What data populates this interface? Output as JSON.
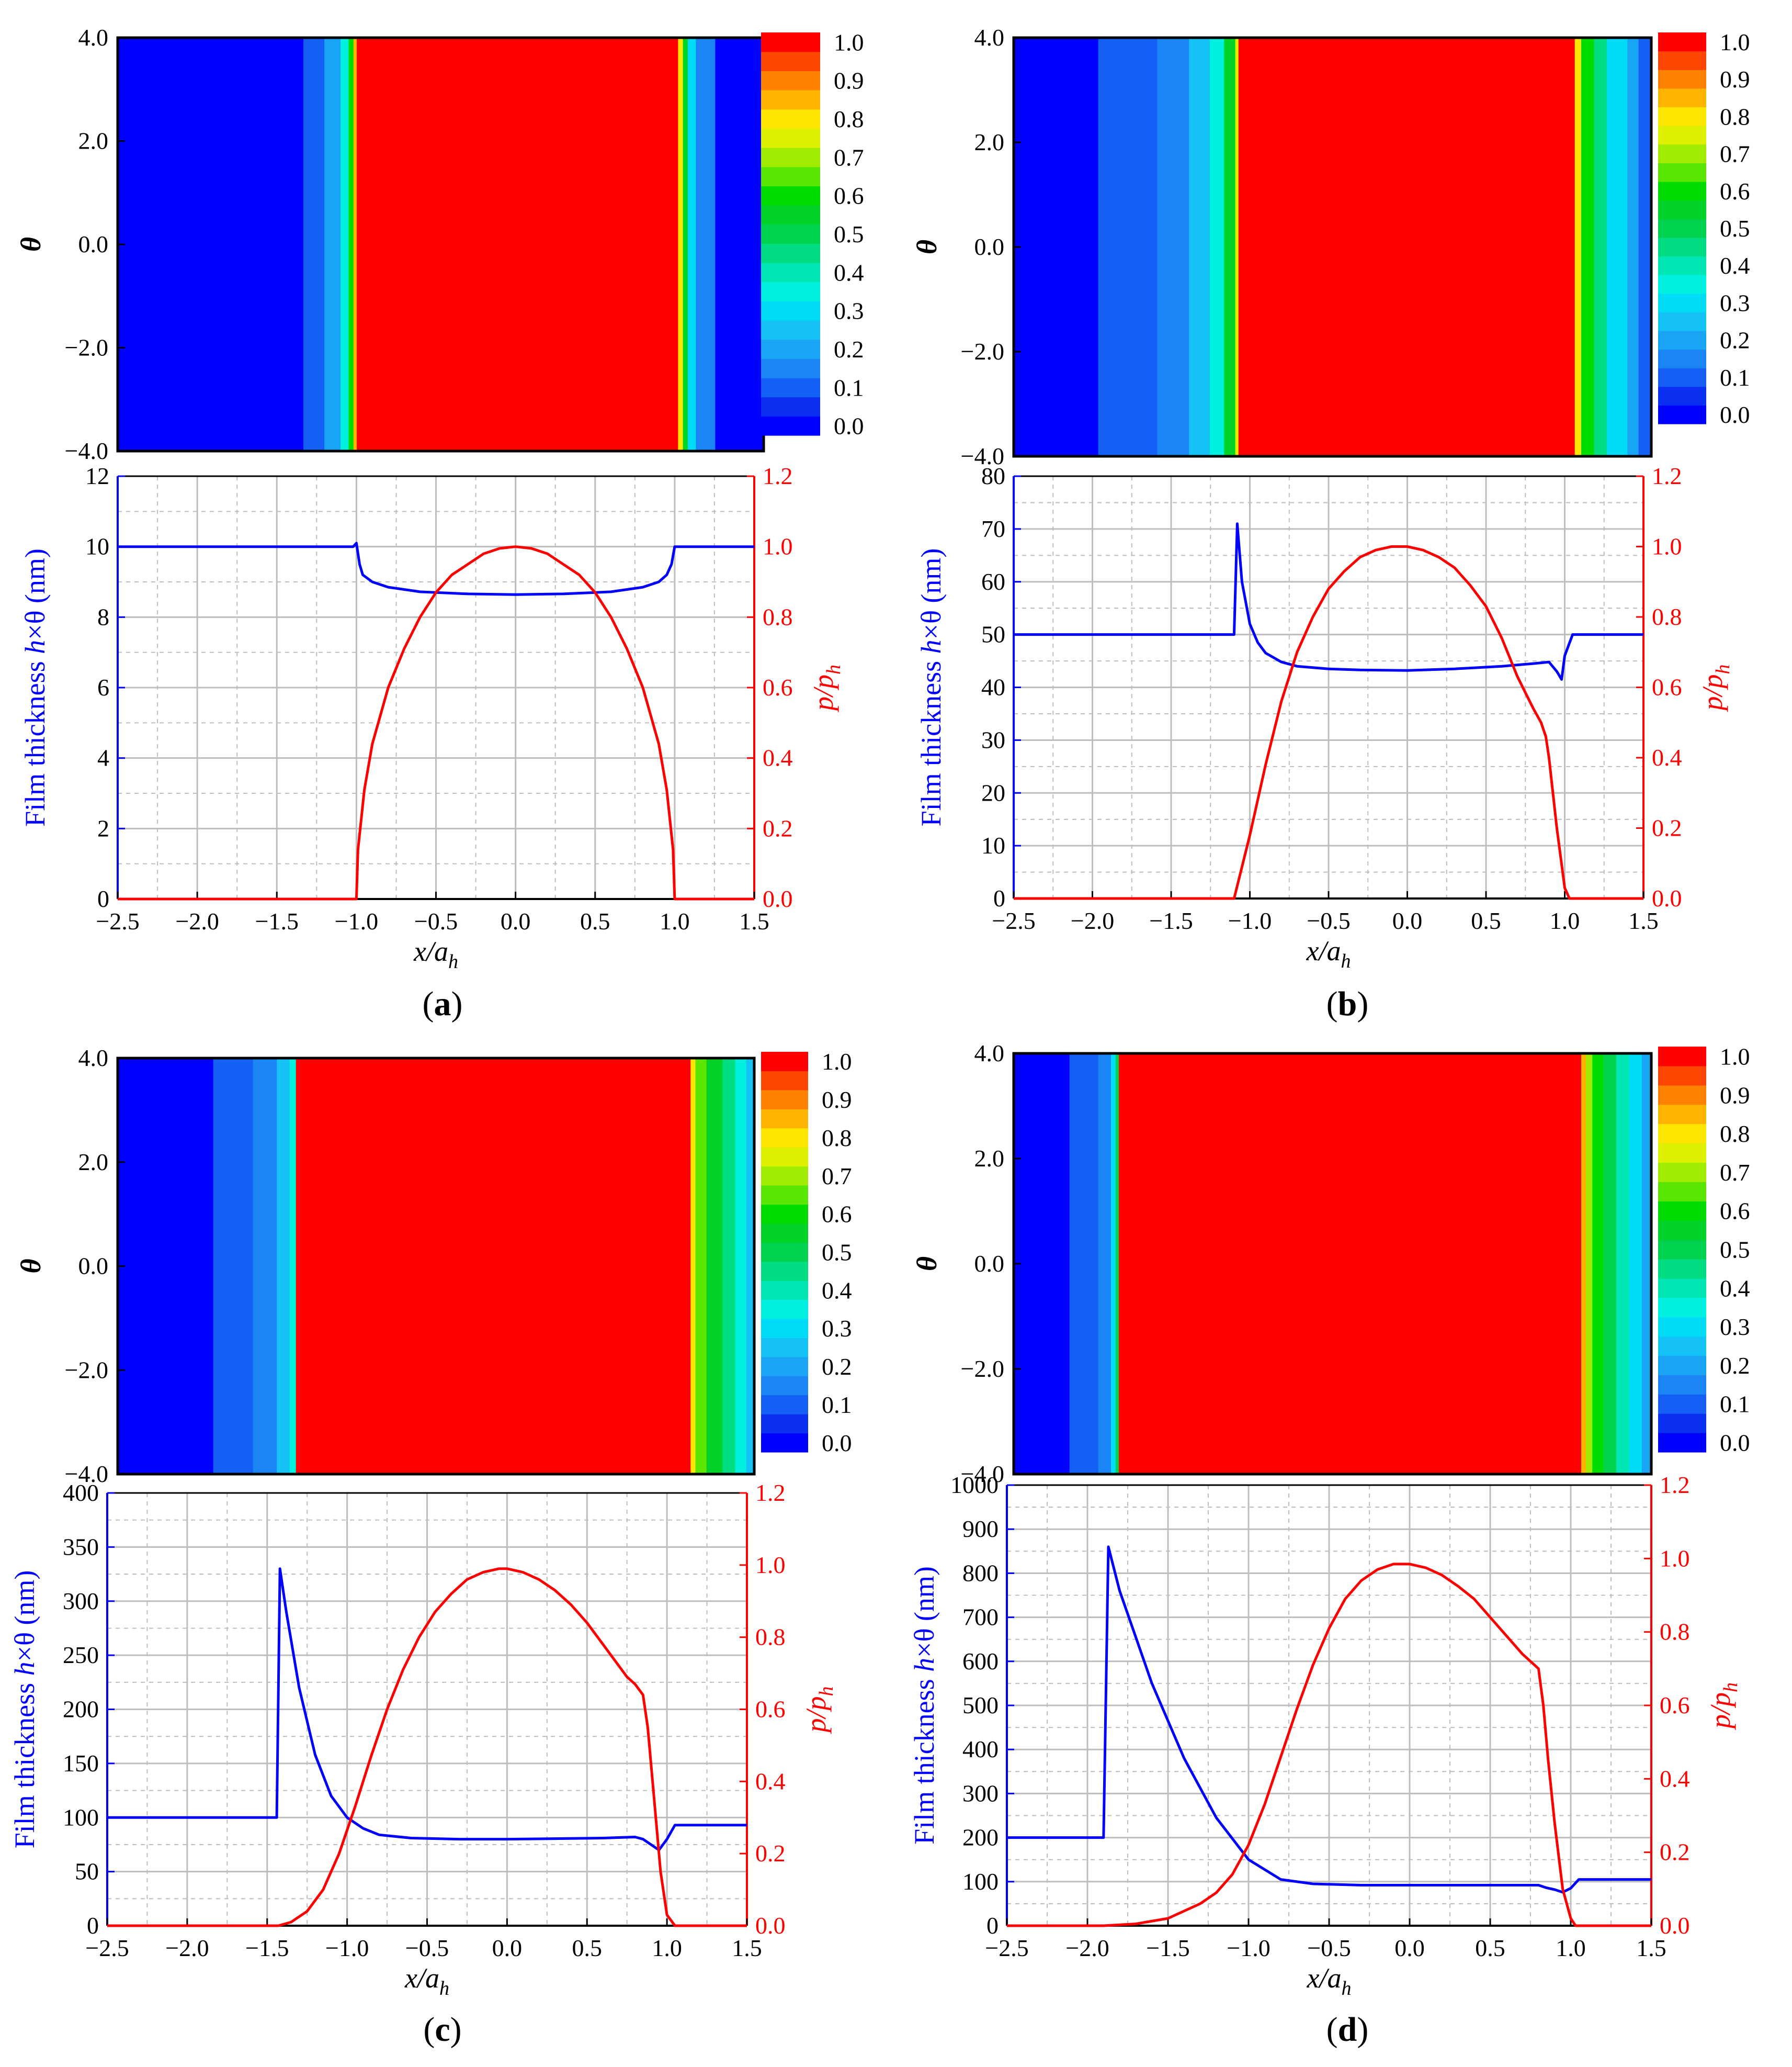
{
  "figure": {
    "panels": [
      {
        "id": "a",
        "label": "a"
      },
      {
        "id": "b",
        "label": "b"
      },
      {
        "id": "c",
        "label": "c"
      },
      {
        "id": "d",
        "label": "d"
      }
    ]
  },
  "colormap": {
    "levels": [
      0.0,
      0.05,
      0.1,
      0.15,
      0.2,
      0.25,
      0.3,
      0.35,
      0.4,
      0.45,
      0.5,
      0.55,
      0.6,
      0.65,
      0.7,
      0.75,
      0.8,
      0.85,
      0.9,
      0.95,
      1.0
    ],
    "colors": [
      "#0000ff",
      "#0a2ff0",
      "#1460f5",
      "#1c85f5",
      "#1aa4f5",
      "#14c2f5",
      "#00dcf5",
      "#00f0e0",
      "#00e6b4",
      "#00dc82",
      "#00d250",
      "#00d228",
      "#00dc00",
      "#5ae600",
      "#a0eb00",
      "#dcf000",
      "#ffe600",
      "#ffb400",
      "#ff8200",
      "#ff4600",
      "#ff0000"
    ],
    "tick_labels": [
      "0.0",
      "0.1",
      "0.2",
      "0.3",
      "0.4",
      "0.5",
      "0.6",
      "0.7",
      "0.8",
      "0.9",
      "1.0"
    ]
  },
  "colors": {
    "film_curve": "#0000ff",
    "pressure_curve": "#ff0000",
    "frame": "#000000",
    "grid": "#bdbdbd"
  },
  "chart_data": [
    {
      "panel": "a",
      "type": "heatmap",
      "title": "",
      "xlabel": "",
      "ylabel": "θ",
      "xlim": [
        -2.5,
        1.5
      ],
      "ylim": [
        -4.0,
        4.0
      ],
      "y_ticks": [
        "4.0",
        "2.0",
        "0.0",
        "−2.0",
        "−4.0"
      ],
      "colorbar_label": "",
      "column_values": [
        {
          "x_from": -2.5,
          "x_to": -1.35,
          "value": 0.0
        },
        {
          "x_from": -1.35,
          "x_to": -1.22,
          "value": 0.1
        },
        {
          "x_from": -1.22,
          "x_to": -1.12,
          "value": 0.2
        },
        {
          "x_from": -1.12,
          "x_to": -1.07,
          "value": 0.35
        },
        {
          "x_from": -1.07,
          "x_to": -1.04,
          "value": 0.6
        },
        {
          "x_from": -1.04,
          "x_to": -1.02,
          "value": 0.85
        },
        {
          "x_from": -1.02,
          "x_to": 0.97,
          "value": 1.0
        },
        {
          "x_from": 0.97,
          "x_to": 1.0,
          "value": 0.8
        },
        {
          "x_from": 1.0,
          "x_to": 1.03,
          "value": 0.55
        },
        {
          "x_from": 1.03,
          "x_to": 1.08,
          "value": 0.3
        },
        {
          "x_from": 1.08,
          "x_to": 1.2,
          "value": 0.15
        },
        {
          "x_from": 1.2,
          "x_to": 1.5,
          "value": 0.0
        }
      ]
    },
    {
      "panel": "a",
      "type": "line",
      "xlabel": "x/a_h",
      "ylabel": "Film thickness h×θ (nm)",
      "ylabel_right": "p/p_h",
      "xlim": [
        -2.5,
        1.5
      ],
      "ylim": [
        0,
        12
      ],
      "ylim_right": [
        0.0,
        1.2
      ],
      "x_ticks": [
        "−2.5",
        "−2.0",
        "−1.5",
        "−1.0",
        "−0.5",
        "0.0",
        "0.5",
        "1.0",
        "1.5"
      ],
      "y_ticks": [
        "0",
        "2",
        "4",
        "6",
        "8",
        "10",
        "12"
      ],
      "y_ticks_right": [
        "0.0",
        "0.2",
        "0.4",
        "0.6",
        "0.8",
        "1.0",
        "1.2"
      ],
      "grid": true,
      "series": [
        {
          "name": "Film thickness h×θ",
          "axis": "left",
          "x": [
            -2.5,
            -1.02,
            -1.0,
            -0.98,
            -0.96,
            -0.9,
            -0.8,
            -0.6,
            -0.3,
            0.0,
            0.3,
            0.6,
            0.8,
            0.9,
            0.95,
            0.98,
            1.0,
            1.02,
            1.5
          ],
          "y": [
            10.0,
            10.0,
            10.1,
            9.5,
            9.2,
            9.0,
            8.85,
            8.72,
            8.66,
            8.64,
            8.66,
            8.72,
            8.85,
            9.0,
            9.2,
            9.5,
            10.0,
            10.0,
            10.0
          ]
        },
        {
          "name": "p/p_h",
          "axis": "right",
          "x": [
            -2.5,
            -1.0,
            -0.99,
            -0.95,
            -0.9,
            -0.8,
            -0.7,
            -0.6,
            -0.5,
            -0.4,
            -0.3,
            -0.2,
            -0.1,
            0.0,
            0.1,
            0.2,
            0.3,
            0.4,
            0.5,
            0.6,
            0.7,
            0.8,
            0.9,
            0.95,
            0.99,
            1.0,
            1.5
          ],
          "y": [
            0.0,
            0.0,
            0.14,
            0.31,
            0.44,
            0.6,
            0.71,
            0.8,
            0.87,
            0.92,
            0.95,
            0.98,
            0.995,
            1.0,
            0.995,
            0.98,
            0.95,
            0.92,
            0.87,
            0.8,
            0.71,
            0.6,
            0.44,
            0.31,
            0.14,
            0.0,
            0.0
          ]
        }
      ]
    },
    {
      "panel": "b",
      "type": "heatmap",
      "title": "",
      "xlabel": "",
      "ylabel": "θ",
      "xlim": [
        -2.5,
        1.5
      ],
      "ylim": [
        -4.0,
        4.0
      ],
      "y_ticks": [
        "4.0",
        "2.0",
        "0.0",
        "−2.0",
        "−4.0"
      ],
      "colorbar_label": "",
      "column_values": [
        {
          "x_from": -2.5,
          "x_to": -1.97,
          "value": 0.0
        },
        {
          "x_from": -1.97,
          "x_to": -1.6,
          "value": 0.1
        },
        {
          "x_from": -1.6,
          "x_to": -1.4,
          "value": 0.15
        },
        {
          "x_from": -1.4,
          "x_to": -1.27,
          "value": 0.25
        },
        {
          "x_from": -1.27,
          "x_to": -1.18,
          "value": 0.35
        },
        {
          "x_from": -1.18,
          "x_to": -1.11,
          "value": 0.55
        },
        {
          "x_from": -1.11,
          "x_to": -1.09,
          "value": 0.75
        },
        {
          "x_from": -1.09,
          "x_to": 1.02,
          "value": 1.0
        },
        {
          "x_from": 1.02,
          "x_to": 1.06,
          "value": 0.8
        },
        {
          "x_from": 1.06,
          "x_to": 1.14,
          "value": 0.6
        },
        {
          "x_from": 1.14,
          "x_to": 1.22,
          "value": 0.45
        },
        {
          "x_from": 1.22,
          "x_to": 1.35,
          "value": 0.3
        },
        {
          "x_from": 1.35,
          "x_to": 1.42,
          "value": 0.2
        },
        {
          "x_from": 1.42,
          "x_to": 1.5,
          "value": 0.1
        }
      ]
    },
    {
      "panel": "b",
      "type": "line",
      "xlabel": "x/a_h",
      "ylabel": "Film thickness h×θ (nm)",
      "ylabel_right": "p/p_h",
      "xlim": [
        -2.5,
        1.5
      ],
      "ylim": [
        0,
        80
      ],
      "ylim_right": [
        0.0,
        1.2
      ],
      "x_ticks": [
        "−2.5",
        "−2.0",
        "−1.5",
        "−1.0",
        "−0.5",
        "0.0",
        "0.5",
        "1.0",
        "1.5"
      ],
      "y_ticks": [
        "0",
        "10",
        "20",
        "30",
        "40",
        "50",
        "60",
        "70",
        "80"
      ],
      "y_ticks_right": [
        "0.0",
        "0.2",
        "0.4",
        "0.6",
        "0.8",
        "1.0",
        "1.2"
      ],
      "grid": true,
      "series": [
        {
          "name": "Film thickness h×θ",
          "axis": "left",
          "x": [
            -2.5,
            -1.1,
            -1.08,
            -1.05,
            -1.0,
            -0.95,
            -0.9,
            -0.8,
            -0.7,
            -0.5,
            -0.3,
            0.0,
            0.3,
            0.6,
            0.8,
            0.9,
            0.95,
            0.98,
            1.0,
            1.05,
            1.5
          ],
          "y": [
            50.0,
            50.0,
            71.0,
            60.0,
            52.0,
            48.5,
            46.5,
            44.8,
            44.0,
            43.5,
            43.3,
            43.2,
            43.5,
            44.0,
            44.5,
            44.8,
            43.0,
            41.5,
            46.0,
            50.0,
            50.0
          ]
        },
        {
          "name": "p/p_h",
          "axis": "right",
          "x": [
            -2.5,
            -1.1,
            -1.0,
            -0.9,
            -0.8,
            -0.7,
            -0.6,
            -0.5,
            -0.4,
            -0.3,
            -0.2,
            -0.1,
            0.0,
            0.1,
            0.2,
            0.3,
            0.4,
            0.5,
            0.6,
            0.7,
            0.8,
            0.85,
            0.88,
            0.9,
            0.95,
            1.0,
            1.03,
            1.5
          ],
          "y": [
            0.0,
            0.0,
            0.18,
            0.38,
            0.56,
            0.7,
            0.8,
            0.88,
            0.93,
            0.97,
            0.99,
            1.0,
            1.0,
            0.99,
            0.97,
            0.94,
            0.89,
            0.83,
            0.74,
            0.63,
            0.54,
            0.5,
            0.46,
            0.4,
            0.2,
            0.03,
            0.0,
            0.0
          ]
        }
      ]
    },
    {
      "panel": "c",
      "type": "heatmap",
      "title": "",
      "xlabel": "",
      "ylabel": "θ",
      "xlim": [
        -2.5,
        1.5
      ],
      "ylim": [
        -4.0,
        4.0
      ],
      "y_ticks": [
        "4.0",
        "2.0",
        "0.0",
        "−2.0",
        "−4.0"
      ],
      "colorbar_label": "",
      "column_values": [
        {
          "x_from": -2.5,
          "x_to": -1.9,
          "value": 0.0
        },
        {
          "x_from": -1.9,
          "x_to": -1.65,
          "value": 0.1
        },
        {
          "x_from": -1.65,
          "x_to": -1.5,
          "value": 0.15
        },
        {
          "x_from": -1.5,
          "x_to": -1.42,
          "value": 0.25
        },
        {
          "x_from": -1.42,
          "x_to": -1.38,
          "value": 0.35
        },
        {
          "x_from": -1.38,
          "x_to": 1.1,
          "value": 1.0
        },
        {
          "x_from": 1.1,
          "x_to": 1.13,
          "value": 0.8
        },
        {
          "x_from": 1.13,
          "x_to": 1.2,
          "value": 0.65
        },
        {
          "x_from": 1.2,
          "x_to": 1.3,
          "value": 0.55
        },
        {
          "x_from": 1.3,
          "x_to": 1.38,
          "value": 0.45
        },
        {
          "x_from": 1.38,
          "x_to": 1.45,
          "value": 0.35
        },
        {
          "x_from": 1.45,
          "x_to": 1.5,
          "value": 0.25
        }
      ]
    },
    {
      "panel": "c",
      "type": "line",
      "xlabel": "x/a_h",
      "ylabel": "Film thickness h×θ (nm)",
      "ylabel_right": "p/p_h",
      "xlim": [
        -2.5,
        1.5
      ],
      "ylim": [
        0,
        400
      ],
      "ylim_right": [
        0.0,
        1.2
      ],
      "x_ticks": [
        "−2.5",
        "−2.0",
        "−1.5",
        "−1.0",
        "−0.5",
        "0.0",
        "0.5",
        "1.0",
        "1.5"
      ],
      "y_ticks": [
        "0",
        "50",
        "100",
        "150",
        "200",
        "250",
        "300",
        "350",
        "400"
      ],
      "y_ticks_right": [
        "0.0",
        "0.2",
        "0.4",
        "0.6",
        "0.8",
        "1.0",
        "1.2"
      ],
      "grid": true,
      "series": [
        {
          "name": "Film thickness h×θ",
          "axis": "left",
          "x": [
            -2.5,
            -1.44,
            -1.42,
            -1.38,
            -1.3,
            -1.2,
            -1.1,
            -1.0,
            -0.9,
            -0.8,
            -0.6,
            -0.3,
            0.0,
            0.3,
            0.6,
            0.8,
            0.85,
            0.9,
            0.95,
            1.0,
            1.05,
            1.5
          ],
          "y": [
            100.0,
            100.0,
            330.0,
            290.0,
            220.0,
            158.0,
            120.0,
            100.0,
            90.0,
            84.0,
            81.0,
            80.0,
            80.0,
            80.5,
            81.0,
            82.0,
            80.0,
            75.0,
            70.0,
            80.0,
            93.0,
            93.0
          ]
        },
        {
          "name": "p/p_h",
          "axis": "right",
          "x": [
            -2.5,
            -1.43,
            -1.35,
            -1.25,
            -1.15,
            -1.05,
            -0.95,
            -0.85,
            -0.75,
            -0.65,
            -0.55,
            -0.45,
            -0.35,
            -0.25,
            -0.15,
            -0.05,
            0.0,
            0.1,
            0.2,
            0.3,
            0.4,
            0.5,
            0.6,
            0.7,
            0.75,
            0.8,
            0.85,
            0.88,
            0.92,
            0.96,
            1.0,
            1.05,
            1.5
          ],
          "y": [
            0.0,
            0.0,
            0.01,
            0.04,
            0.1,
            0.2,
            0.33,
            0.47,
            0.6,
            0.71,
            0.8,
            0.87,
            0.92,
            0.96,
            0.98,
            0.99,
            0.99,
            0.98,
            0.96,
            0.93,
            0.89,
            0.84,
            0.78,
            0.72,
            0.69,
            0.67,
            0.64,
            0.55,
            0.35,
            0.15,
            0.03,
            0.0,
            0.0
          ]
        }
      ]
    },
    {
      "panel": "d",
      "type": "heatmap",
      "title": "",
      "xlabel": "",
      "ylabel": "θ",
      "xlim": [
        -2.5,
        1.5
      ],
      "ylim": [
        -4.0,
        4.0
      ],
      "y_ticks": [
        "4.0",
        "2.0",
        "0.0",
        "−2.0",
        "−4.0"
      ],
      "colorbar_label": "",
      "column_values": [
        {
          "x_from": -2.5,
          "x_to": -2.15,
          "value": 0.0
        },
        {
          "x_from": -2.15,
          "x_to": -1.97,
          "value": 0.1
        },
        {
          "x_from": -1.97,
          "x_to": -1.89,
          "value": 0.15
        },
        {
          "x_from": -1.89,
          "x_to": -1.86,
          "value": 0.3
        },
        {
          "x_from": -1.86,
          "x_to": -1.84,
          "value": 0.5
        },
        {
          "x_from": -1.84,
          "x_to": 1.06,
          "value": 1.0
        },
        {
          "x_from": 1.06,
          "x_to": 1.09,
          "value": 0.85
        },
        {
          "x_from": 1.09,
          "x_to": 1.13,
          "value": 0.7
        },
        {
          "x_from": 1.13,
          "x_to": 1.2,
          "value": 0.6
        },
        {
          "x_from": 1.2,
          "x_to": 1.28,
          "value": 0.5
        },
        {
          "x_from": 1.28,
          "x_to": 1.36,
          "value": 0.4
        },
        {
          "x_from": 1.36,
          "x_to": 1.44,
          "value": 0.3
        },
        {
          "x_from": 1.44,
          "x_to": 1.5,
          "value": 0.2
        }
      ]
    },
    {
      "panel": "d",
      "type": "line",
      "xlabel": "x/a_h",
      "ylabel": "Film thickness h×θ (nm)",
      "ylabel_right": "p/p_h",
      "xlim": [
        -2.5,
        1.5
      ],
      "ylim": [
        0,
        1000
      ],
      "ylim_right": [
        0.0,
        1.2
      ],
      "x_ticks": [
        "−2.5",
        "−2.0",
        "−1.5",
        "−1.0",
        "−0.5",
        "0.0",
        "0.5",
        "1.0",
        "1.5"
      ],
      "y_ticks": [
        "0",
        "100",
        "200",
        "300",
        "400",
        "500",
        "600",
        "700",
        "800",
        "900",
        "1000"
      ],
      "y_ticks_right": [
        "0.0",
        "0.2",
        "0.4",
        "0.6",
        "0.8",
        "1.0",
        "1.2"
      ],
      "grid": true,
      "series": [
        {
          "name": "Film thickness h×θ",
          "axis": "left",
          "x": [
            -2.5,
            -1.9,
            -1.87,
            -1.8,
            -1.6,
            -1.4,
            -1.2,
            -1.0,
            -0.8,
            -0.6,
            -0.3,
            0.0,
            0.3,
            0.6,
            0.8,
            0.85,
            0.9,
            0.95,
            1.0,
            1.05,
            1.5
          ],
          "y": [
            200.0,
            200.0,
            860.0,
            760.0,
            550.0,
            380.0,
            245.0,
            150.0,
            105.0,
            95.0,
            92.0,
            92.0,
            92.0,
            92.0,
            92.0,
            86.0,
            82.0,
            76.0,
            85.0,
            105.0,
            105.0
          ]
        },
        {
          "name": "p/p_h",
          "axis": "right",
          "x": [
            -2.5,
            -1.9,
            -1.7,
            -1.5,
            -1.3,
            -1.2,
            -1.1,
            -1.0,
            -0.9,
            -0.8,
            -0.7,
            -0.6,
            -0.5,
            -0.4,
            -0.3,
            -0.2,
            -0.1,
            0.0,
            0.1,
            0.2,
            0.3,
            0.4,
            0.5,
            0.6,
            0.7,
            0.75,
            0.8,
            0.83,
            0.86,
            0.9,
            0.95,
            1.0,
            1.03,
            1.5
          ],
          "y": [
            0.0,
            0.0,
            0.005,
            0.02,
            0.06,
            0.09,
            0.14,
            0.22,
            0.33,
            0.46,
            0.59,
            0.71,
            0.81,
            0.89,
            0.94,
            0.97,
            0.985,
            0.985,
            0.975,
            0.955,
            0.925,
            0.89,
            0.84,
            0.79,
            0.74,
            0.72,
            0.7,
            0.6,
            0.45,
            0.28,
            0.1,
            0.02,
            0.0,
            0.0
          ]
        }
      ]
    }
  ]
}
